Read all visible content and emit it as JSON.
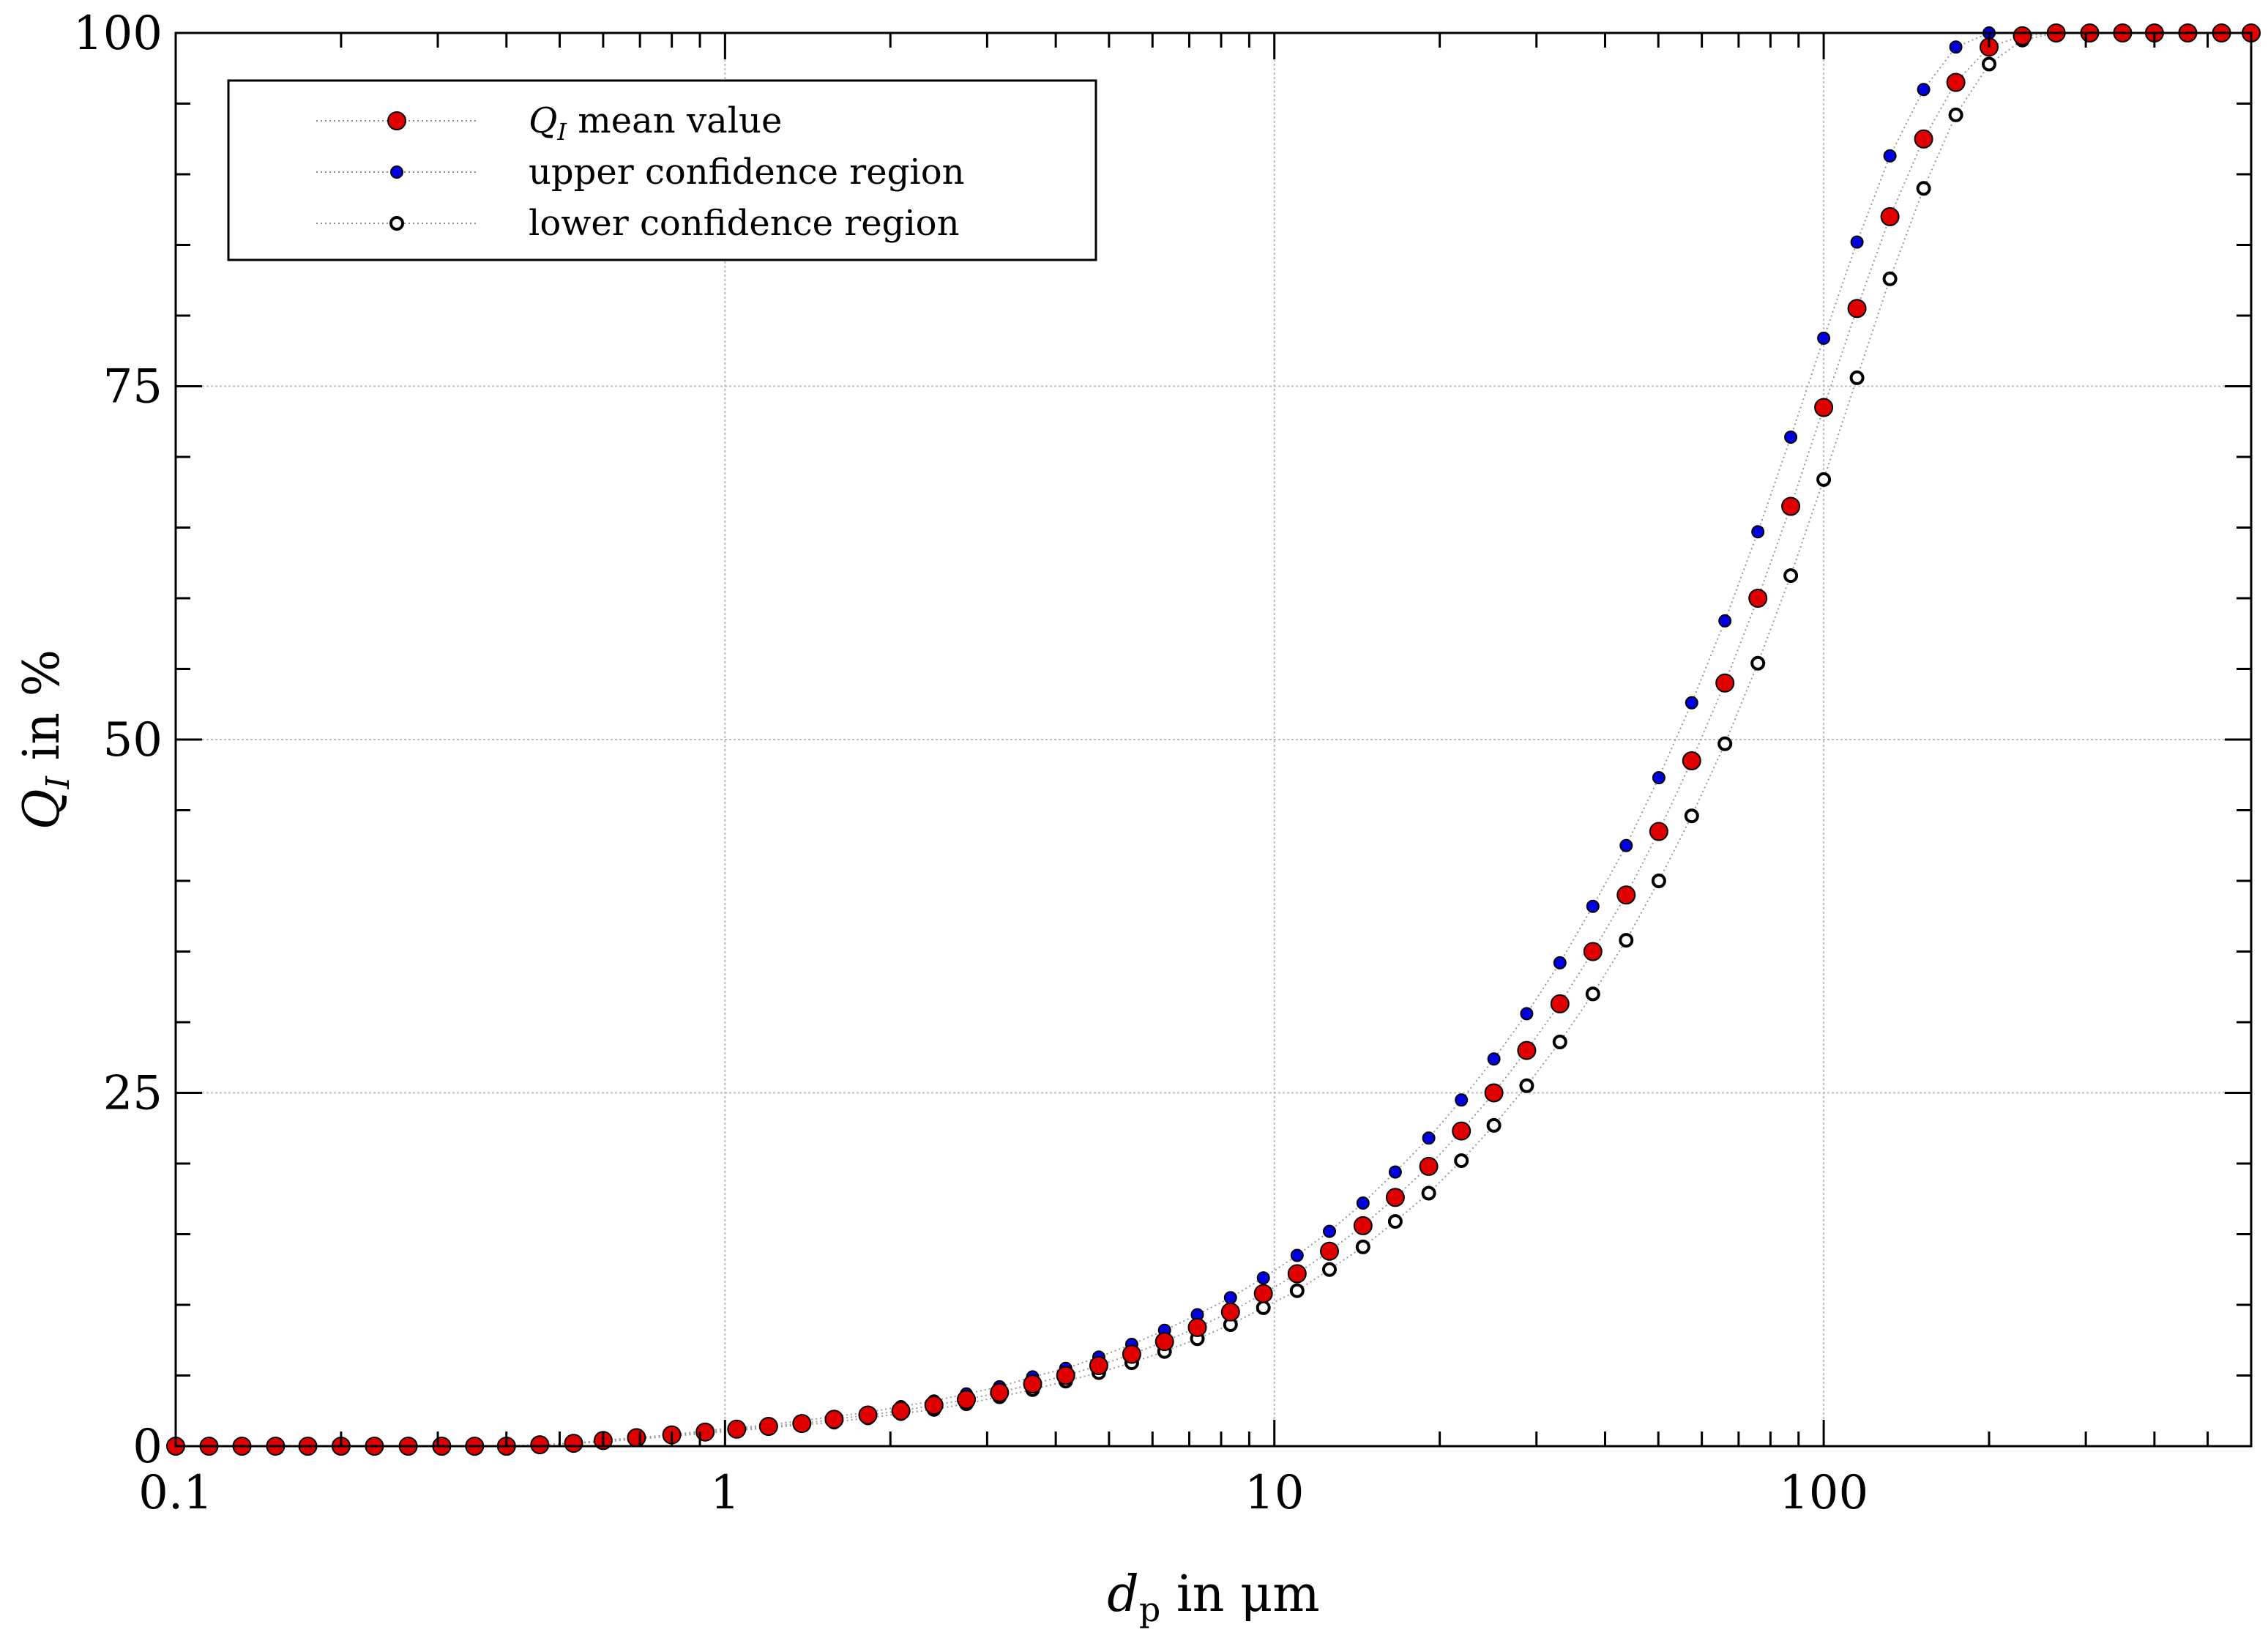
{
  "chart_data": {
    "type": "scatter",
    "xscale": "log",
    "xlim": [
      0.1,
      600
    ],
    "ylim": [
      0,
      100
    ],
    "grid": true,
    "legend_position": "top-left",
    "xticks": [
      0.1,
      1,
      10,
      100
    ],
    "xtick_labels": [
      "0.1",
      "1",
      "10",
      "100"
    ],
    "yticks": [
      0,
      25,
      50,
      75,
      100
    ],
    "ytick_labels": [
      "0",
      "25",
      "50",
      "75",
      "100"
    ],
    "xlabel": {
      "main": "d",
      "sub": "p",
      "rest": " in μm"
    },
    "ylabel": {
      "main": "Q",
      "sub": "I",
      "rest": " in %"
    },
    "x": [
      0.1,
      0.115,
      0.132,
      0.152,
      0.174,
      0.2,
      0.23,
      0.265,
      0.305,
      0.35,
      0.4,
      0.46,
      0.53,
      0.6,
      0.69,
      0.8,
      0.92,
      1.05,
      1.2,
      1.38,
      1.58,
      1.82,
      2.09,
      2.4,
      2.75,
      3.16,
      3.63,
      4.17,
      4.79,
      5.5,
      6.31,
      7.24,
      8.32,
      9.55,
      11.0,
      12.6,
      14.5,
      16.6,
      19.1,
      21.9,
      25.1,
      28.8,
      33.1,
      38.0,
      43.7,
      50.1,
      57.5,
      66.1,
      75.9,
      87.1,
      100,
      115,
      132,
      152,
      174,
      200,
      230,
      265,
      305,
      350,
      400,
      460,
      530,
      600
    ],
    "series": [
      {
        "name": "mean value",
        "label_main": "Q",
        "label_sub": "I",
        "label_rest": " mean value",
        "color": "#e00000",
        "stroke": "#000000",
        "marker": "filled-large",
        "values": [
          0,
          0,
          0,
          0,
          0,
          0,
          0,
          0,
          0,
          0,
          0,
          0.1,
          0.2,
          0.4,
          0.6,
          0.8,
          1.0,
          1.2,
          1.4,
          1.6,
          1.9,
          2.2,
          2.5,
          2.9,
          3.3,
          3.8,
          4.4,
          5.0,
          5.7,
          6.5,
          7.4,
          8.4,
          9.5,
          10.8,
          12.2,
          13.8,
          15.6,
          17.6,
          19.8,
          22.3,
          25.0,
          28.0,
          31.3,
          35.0,
          39.0,
          43.5,
          48.5,
          54.0,
          60.0,
          66.5,
          73.5,
          80.5,
          87.0,
          92.5,
          96.5,
          99.0,
          99.8,
          100,
          100,
          100,
          100,
          100,
          100,
          100
        ]
      },
      {
        "name": "upper confidence region",
        "label_main": "",
        "label_sub": "",
        "label_rest": "upper confidence region",
        "color": "#0000e0",
        "stroke": "#000000",
        "marker": "filled-small",
        "values": [
          0,
          0,
          0,
          0,
          0,
          0,
          0,
          0,
          0,
          0,
          0,
          0.1,
          0.2,
          0.4,
          0.6,
          0.8,
          1.1,
          1.3,
          1.5,
          1.8,
          2.1,
          2.4,
          2.8,
          3.2,
          3.7,
          4.2,
          4.9,
          5.5,
          6.3,
          7.2,
          8.2,
          9.3,
          10.5,
          11.9,
          13.5,
          15.2,
          17.2,
          19.4,
          21.8,
          24.5,
          27.4,
          30.6,
          34.2,
          38.2,
          42.5,
          47.3,
          52.6,
          58.4,
          64.7,
          71.4,
          78.4,
          85.2,
          91.3,
          96.0,
          99.0,
          100,
          100,
          100,
          100,
          100,
          100,
          100,
          100,
          100
        ]
      },
      {
        "name": "lower confidence region",
        "label_main": "",
        "label_sub": "",
        "label_rest": "lower confidence region",
        "color": "#ffffff",
        "stroke": "#000000",
        "marker": "hollow",
        "values": [
          0,
          0,
          0,
          0,
          0,
          0,
          0,
          0,
          0,
          0,
          0,
          0.1,
          0.2,
          0.3,
          0.5,
          0.7,
          0.9,
          1.1,
          1.3,
          1.5,
          1.7,
          2.0,
          2.3,
          2.6,
          3.0,
          3.5,
          4.0,
          4.6,
          5.2,
          5.9,
          6.7,
          7.6,
          8.6,
          9.8,
          11.0,
          12.5,
          14.1,
          15.9,
          17.9,
          20.2,
          22.7,
          25.5,
          28.6,
          32.0,
          35.8,
          40.0,
          44.6,
          49.7,
          55.4,
          61.6,
          68.4,
          75.6,
          82.6,
          89.0,
          94.2,
          97.8,
          99.5,
          100,
          100,
          100,
          100,
          100,
          100,
          100
        ]
      }
    ]
  }
}
